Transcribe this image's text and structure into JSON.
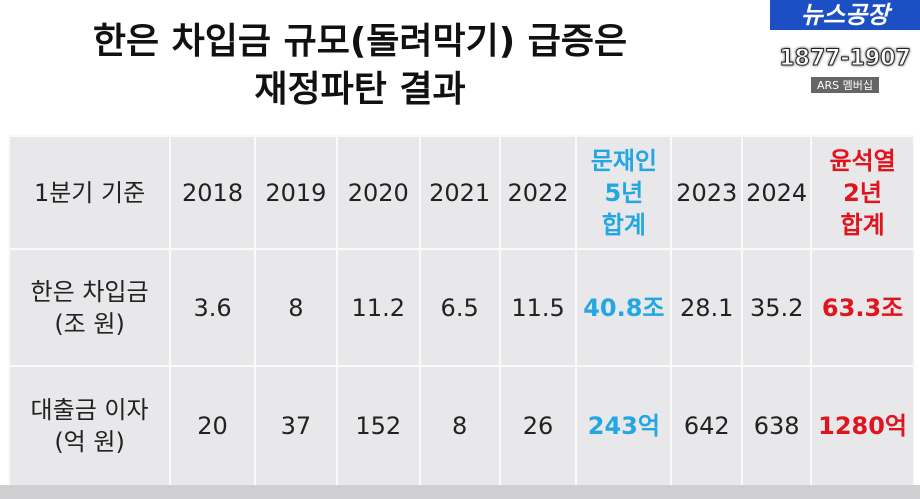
{
  "header": {
    "title_lines": [
      "한은 차입금 규모(돌려막기) 급증은",
      "재정파탄 결과"
    ],
    "logo": "뉴스공장",
    "phone": "1877-1907",
    "membership": "ARS 멤버십"
  },
  "table": {
    "header": [
      "1분기 기준",
      "2018",
      "2019",
      "2020",
      "2021",
      "2022",
      "문재인\n5년\n합계",
      "2023",
      "2024",
      "윤석열\n2년\n합계"
    ],
    "rows": [
      [
        "한은 차입금\n(조 원)",
        "3.6",
        "8",
        "11.2",
        "6.5",
        "11.5",
        "40.8조",
        "28.1",
        "35.2",
        "63.3조"
      ],
      [
        "대출금 이자\n(억 원)",
        "20",
        "37",
        "152",
        "8",
        "26",
        "243억",
        "642",
        "638",
        "1280억"
      ]
    ]
  }
}
